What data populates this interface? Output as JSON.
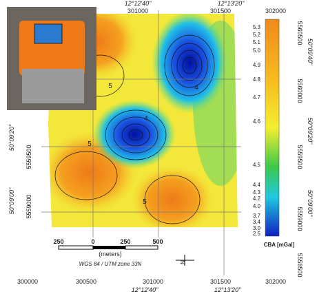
{
  "axes": {
    "top": [
      "12°12'40\"",
      "301000",
      "12°13'20\"",
      "301500",
      "302000"
    ],
    "bottom": [
      "300000",
      "300500",
      "301000",
      "301500",
      "302000",
      "12°12'40\"",
      "12°13'20\""
    ],
    "left": [
      "50°09'20\"",
      "5559500",
      "50°09'00\"",
      "5559000"
    ],
    "right": [
      "5560500",
      "50°09'40\"",
      "5560000",
      "50°09'20\"",
      "5559500",
      "50°09'00\"",
      "5559000",
      "5558500"
    ]
  },
  "colorbar": {
    "labels": [
      "5.3",
      "5.2",
      "5.1",
      "5.0",
      "4.9",
      "4.8",
      "4.7",
      "4.6",
      "4.5",
      "4.4",
      "4.3",
      "4.2",
      "4.0",
      "3.7",
      "3.4",
      "3.0",
      "2.5"
    ],
    "title": "CBA [mGal]"
  },
  "scale_bar": {
    "labels": [
      "250",
      "0",
      "250",
      "500"
    ],
    "unit": "(meters)"
  },
  "crs": "WGS 84 / UTM zone 33N",
  "north": "N",
  "contour_labels": [
    "5",
    "4",
    "5",
    "5",
    "4"
  ]
}
